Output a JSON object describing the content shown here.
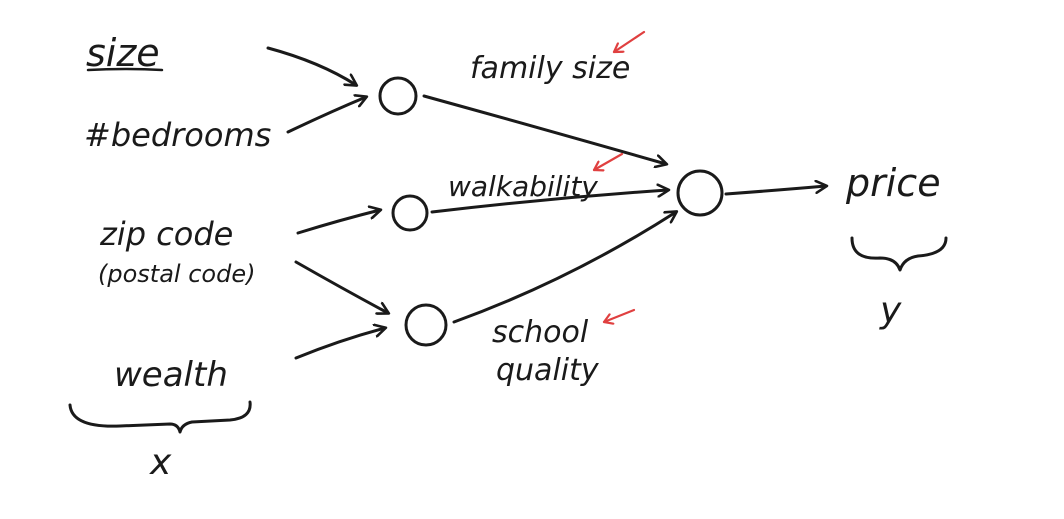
{
  "inputs": {
    "size": "size",
    "bedrooms": "#bedrooms",
    "zip_code": "zip code",
    "postal_code": "(postal code)",
    "wealth": "wealth",
    "x_label": "x"
  },
  "hidden": {
    "family_size": "family size",
    "walkability": "walkability",
    "school": "school",
    "quality": "quality"
  },
  "output": {
    "price": "price",
    "y_label": "y"
  },
  "colors": {
    "ink": "#1a1a1a",
    "highlight": "#e04040"
  }
}
